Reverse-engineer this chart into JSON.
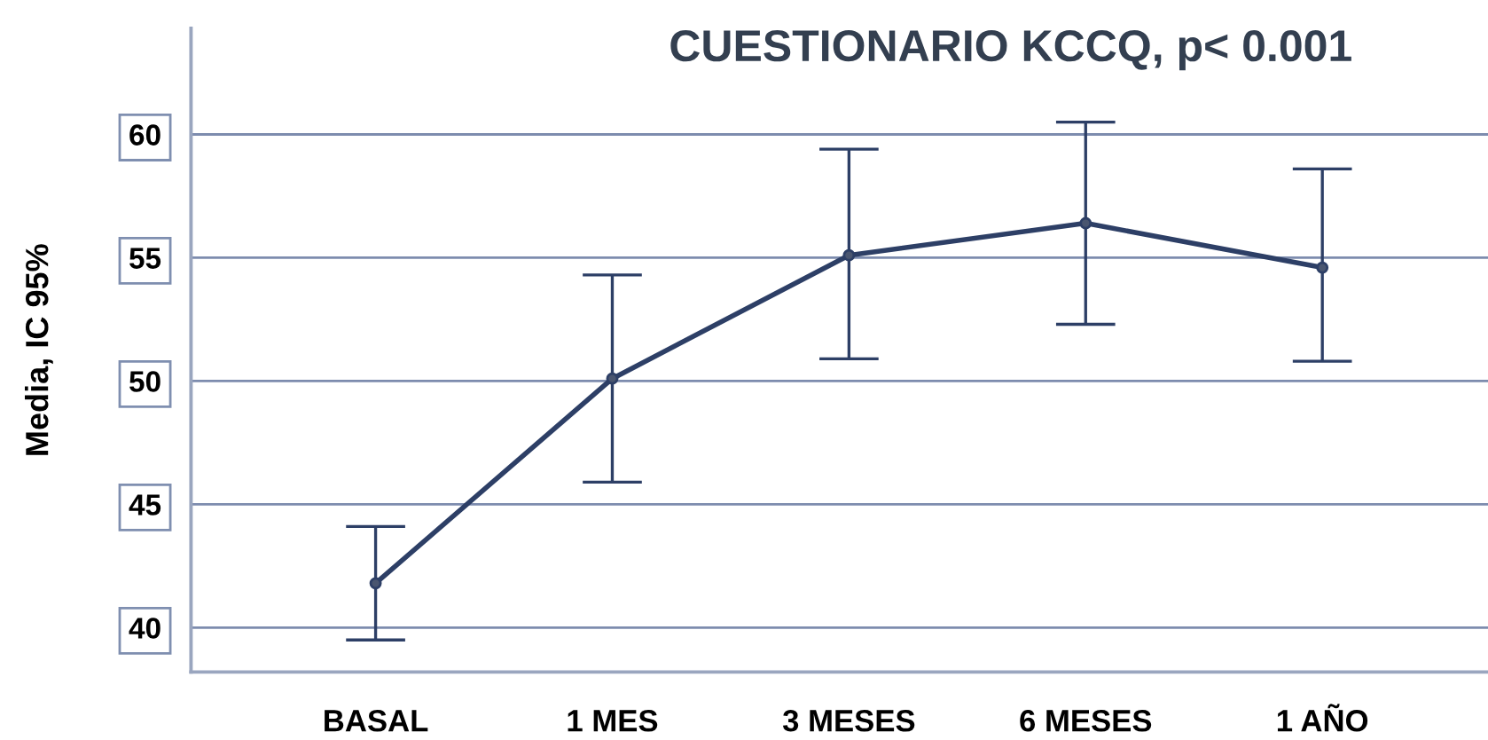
{
  "chart_data": {
    "type": "line",
    "title": "CUESTIONARIO KCCQ, p< 0.001",
    "ylabel": "Media, IC 95%",
    "categories": [
      "BASAL",
      "1 MES",
      "3 MESES",
      "6 MESES",
      "1 AÑO"
    ],
    "series": [
      {
        "color": "#2d3f66",
        "values": [
          41.8,
          50.1,
          55.1,
          56.4,
          54.6
        ],
        "errors": [
          [
            39.5,
            44.1
          ],
          [
            45.9,
            54.3
          ],
          [
            50.9,
            59.4
          ],
          [
            52.3,
            60.5
          ],
          [
            50.8,
            58.6
          ]
        ]
      }
    ],
    "ylim": [
      38.2,
      64.3
    ],
    "yticks": [
      40,
      45,
      50,
      55,
      60
    ],
    "grid": "y",
    "marker": "circle",
    "line_style": "solid"
  }
}
